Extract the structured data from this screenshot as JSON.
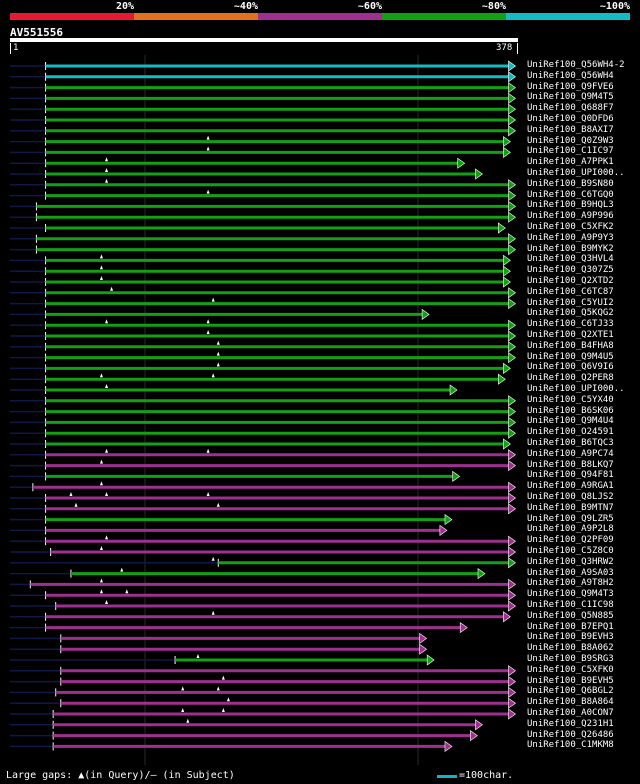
{
  "legend": {
    "labels": [
      "20%",
      "~40%",
      "~60%",
      "~80%",
      "~100%"
    ],
    "colors": [
      "#e8182e",
      "#e3701c",
      "#a03090",
      "#13a013",
      "#13bcc4"
    ]
  },
  "query": {
    "id": "AV551556",
    "start": "1",
    "end": "378"
  },
  "footer": {
    "gaps_text": "Large gaps: ▲(in Query)/– (in Subject)",
    "scale_text": "=100char."
  },
  "hits": [
    {
      "label": "UniRef100_Q56WH4-2",
      "color": "cyan",
      "start": 0.07,
      "end": 0.995,
      "gaps": []
    },
    {
      "label": "UniRef100_Q56WH4",
      "color": "cyan",
      "start": 0.07,
      "end": 0.995,
      "gaps": []
    },
    {
      "label": "UniRef100_Q9FVE6",
      "color": "green",
      "start": 0.07,
      "end": 0.995,
      "gaps": []
    },
    {
      "label": "UniRef100_Q9M4T5",
      "color": "green",
      "start": 0.07,
      "end": 0.995,
      "gaps": []
    },
    {
      "label": "UniRef100_Q688F7",
      "color": "green",
      "start": 0.07,
      "end": 0.995,
      "gaps": []
    },
    {
      "label": "UniRef100_Q0DFD6",
      "color": "green",
      "start": 0.07,
      "end": 0.995,
      "gaps": []
    },
    {
      "label": "UniRef100_B8AXI7",
      "color": "green",
      "start": 0.07,
      "end": 0.995,
      "gaps": []
    },
    {
      "label": "UniRef100_Q0Z9W3",
      "color": "green",
      "start": 0.07,
      "end": 0.985,
      "gaps": [
        0.39
      ]
    },
    {
      "label": "UniRef100_C1IC97",
      "color": "green",
      "start": 0.07,
      "end": 0.985,
      "gaps": [
        0.39
      ]
    },
    {
      "label": "UniRef100_A7PPK1",
      "color": "green",
      "start": 0.07,
      "end": 0.895,
      "gaps": [
        0.19
      ]
    },
    {
      "label": "UniRef100_UPI000..",
      "color": "green",
      "start": 0.07,
      "end": 0.93,
      "gaps": [
        0.19
      ]
    },
    {
      "label": "UniRef100_B9SN80",
      "color": "green",
      "start": 0.07,
      "end": 0.995,
      "gaps": [
        0.19
      ]
    },
    {
      "label": "UniRef100_C6TGQ0",
      "color": "green",
      "start": 0.07,
      "end": 0.995,
      "gaps": [
        0.39
      ]
    },
    {
      "label": "UniRef100_B9HQL3",
      "color": "green",
      "start": 0.052,
      "end": 0.995,
      "gaps": []
    },
    {
      "label": "UniRef100_A9P996",
      "color": "green",
      "start": 0.052,
      "end": 0.995,
      "gaps": []
    },
    {
      "label": "UniRef100_C5XFK2",
      "color": "green",
      "start": 0.07,
      "end": 0.975,
      "gaps": []
    },
    {
      "label": "UniRef100_A9P9Y3",
      "color": "green",
      "start": 0.052,
      "end": 0.995,
      "gaps": []
    },
    {
      "label": "UniRef100_B9MYK2",
      "color": "green",
      "start": 0.052,
      "end": 0.995,
      "gaps": []
    },
    {
      "label": "UniRef100_Q3HVL4",
      "color": "green",
      "start": 0.07,
      "end": 0.985,
      "gaps": [
        0.18
      ]
    },
    {
      "label": "UniRef100_Q307Z5",
      "color": "green",
      "start": 0.07,
      "end": 0.985,
      "gaps": [
        0.18
      ]
    },
    {
      "label": "UniRef100_Q2XTD2",
      "color": "green",
      "start": 0.07,
      "end": 0.985,
      "gaps": [
        0.18
      ]
    },
    {
      "label": "UniRef100_C6TC87",
      "color": "green",
      "start": 0.07,
      "end": 0.995,
      "gaps": [
        0.2
      ]
    },
    {
      "label": "UniRef100_C5YUI2",
      "color": "green",
      "start": 0.07,
      "end": 0.995,
      "gaps": [
        0.4
      ]
    },
    {
      "label": "UniRef100_Q5KQG2",
      "color": "green",
      "start": 0.07,
      "end": 0.825,
      "gaps": []
    },
    {
      "label": "UniRef100_C6TJ33",
      "color": "green",
      "start": 0.07,
      "end": 0.995,
      "gaps": [
        0.19,
        0.39
      ]
    },
    {
      "label": "UniRef100_Q2XTE1",
      "color": "green",
      "start": 0.07,
      "end": 0.995,
      "gaps": [
        0.39
      ]
    },
    {
      "label": "UniRef100_B4FHA8",
      "color": "green",
      "start": 0.07,
      "end": 0.995,
      "gaps": [
        0.41
      ]
    },
    {
      "label": "UniRef100_Q9M4U5",
      "color": "green",
      "start": 0.07,
      "end": 0.995,
      "gaps": [
        0.41
      ]
    },
    {
      "label": "UniRef100_Q6V9I6",
      "color": "green",
      "start": 0.07,
      "end": 0.985,
      "gaps": [
        0.41
      ]
    },
    {
      "label": "UniRef100_Q2PER8",
      "color": "green",
      "start": 0.07,
      "end": 0.975,
      "gaps": [
        0.18,
        0.4
      ]
    },
    {
      "label": "UniRef100_UPI000..",
      "color": "green",
      "start": 0.07,
      "end": 0.88,
      "gaps": [
        0.19
      ]
    },
    {
      "label": "UniRef100_C5YX40",
      "color": "green",
      "start": 0.07,
      "end": 0.995,
      "gaps": []
    },
    {
      "label": "UniRef100_B6SK06",
      "color": "green",
      "start": 0.07,
      "end": 0.995,
      "gaps": []
    },
    {
      "label": "UniRef100_Q9M4U4",
      "color": "green",
      "start": 0.07,
      "end": 0.995,
      "gaps": []
    },
    {
      "label": "UniRef100_O24591",
      "color": "green",
      "start": 0.07,
      "end": 0.995,
      "gaps": []
    },
    {
      "label": "UniRef100_B6TQC3",
      "color": "green",
      "start": 0.07,
      "end": 0.985,
      "gaps": []
    },
    {
      "label": "UniRef100_A9PC74",
      "color": "purple",
      "start": 0.07,
      "end": 0.995,
      "gaps": [
        0.19,
        0.39
      ]
    },
    {
      "label": "UniRef100_B8LKQ7",
      "color": "purple",
      "start": 0.07,
      "end": 0.995,
      "gaps": [
        0.18
      ]
    },
    {
      "label": "UniRef100_Q94F81",
      "color": "green",
      "start": 0.07,
      "end": 0.885,
      "gaps": []
    },
    {
      "label": "UniRef100_A9RGA1",
      "color": "purple",
      "start": 0.045,
      "end": 0.995,
      "gaps": [
        0.18
      ]
    },
    {
      "label": "UniRef100_Q8LJS2",
      "color": "purple",
      "start": 0.07,
      "end": 0.995,
      "gaps": [
        0.12,
        0.19,
        0.39
      ]
    },
    {
      "label": "UniRef100_B9MTN7",
      "color": "purple",
      "start": 0.07,
      "end": 0.995,
      "gaps": [
        0.13,
        0.41
      ]
    },
    {
      "label": "UniRef100_Q9LZR5",
      "color": "green",
      "start": 0.07,
      "end": 0.87,
      "gaps": []
    },
    {
      "label": "UniRef100_A9P2L8",
      "color": "purple",
      "start": 0.07,
      "end": 0.86,
      "gaps": []
    },
    {
      "label": "UniRef100_Q2PF09",
      "color": "purple",
      "start": 0.07,
      "end": 0.995,
      "gaps": [
        0.19
      ]
    },
    {
      "label": "UniRef100_C5Z8C0",
      "color": "purple",
      "start": 0.08,
      "end": 0.995,
      "gaps": [
        0.18
      ]
    },
    {
      "label": "UniRef100_Q3HRW2",
      "color": "green",
      "start": 0.41,
      "end": 0.995,
      "gaps": [
        0.4
      ]
    },
    {
      "label": "UniRef100_A9SA03",
      "color": "green",
      "start": 0.12,
      "end": 0.935,
      "gaps": [
        0.22
      ]
    },
    {
      "label": "UniRef100_A9T8H2",
      "color": "purple",
      "start": 0.04,
      "end": 0.995,
      "gaps": [
        0.18
      ]
    },
    {
      "label": "UniRef100_Q9M4T3",
      "color": "purple",
      "start": 0.07,
      "end": 0.995,
      "gaps": [
        0.18,
        0.23
      ]
    },
    {
      "label": "UniRef100_C1IC98",
      "color": "purple",
      "start": 0.09,
      "end": 0.995,
      "gaps": [
        0.19
      ]
    },
    {
      "label": "UniRef100_Q5N885",
      "color": "purple",
      "start": 0.07,
      "end": 0.985,
      "gaps": [
        0.4
      ]
    },
    {
      "label": "UniRef100_B7EPQ1",
      "color": "purple",
      "start": 0.07,
      "end": 0.9,
      "gaps": []
    },
    {
      "label": "UniRef100_B9EVH3",
      "color": "purple",
      "start": 0.1,
      "end": 0.82,
      "gaps": []
    },
    {
      "label": "UniRef100_B8A062",
      "color": "purple",
      "start": 0.1,
      "end": 0.82,
      "gaps": []
    },
    {
      "label": "UniRef100_B9SRG3",
      "color": "green",
      "start": 0.325,
      "end": 0.835,
      "gaps": [
        0.37
      ]
    },
    {
      "label": "UniRef100_C5XFK0",
      "color": "purple",
      "start": 0.1,
      "end": 0.995,
      "gaps": []
    },
    {
      "label": "UniRef100_B9EVH5",
      "color": "purple",
      "start": 0.1,
      "end": 0.995,
      "gaps": [
        0.42
      ]
    },
    {
      "label": "UniRef100_Q6BGL2",
      "color": "purple",
      "start": 0.09,
      "end": 0.995,
      "gaps": [
        0.34,
        0.41
      ]
    },
    {
      "label": "UniRef100_B8A864",
      "color": "purple",
      "start": 0.1,
      "end": 0.995,
      "gaps": [
        0.43
      ]
    },
    {
      "label": "UniRef100_A0CON7",
      "color": "purple",
      "start": 0.085,
      "end": 0.995,
      "gaps": [
        0.34,
        0.42
      ]
    },
    {
      "label": "UniRef100_Q231H1",
      "color": "purple",
      "start": 0.085,
      "end": 0.93,
      "gaps": [
        0.35
      ]
    },
    {
      "label": "UniRef100_Q26486",
      "color": "purple",
      "start": 0.085,
      "end": 0.92,
      "gaps": []
    },
    {
      "label": "UniRef100_C1MKM8",
      "color": "purple",
      "start": 0.085,
      "end": 0.87,
      "gaps": []
    }
  ]
}
